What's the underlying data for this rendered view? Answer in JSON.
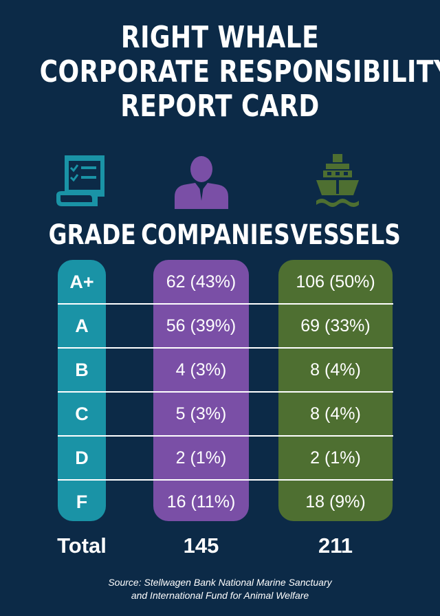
{
  "title": {
    "line1": "RIGHT WHALE",
    "line2": "CORPORATE RESPONSIBILITY",
    "line3": "REPORT CARD"
  },
  "icons": {
    "grade": "report-card-icon",
    "companies": "person-icon",
    "vessels": "ship-icon"
  },
  "headers": {
    "grade": "GRADE",
    "companies": "COMPANIES",
    "vessels": "VESSELS"
  },
  "colors": {
    "background": "#0c2a47",
    "grade": "#1a93a6",
    "companies": "#7a4fa6",
    "vessels": "#4e6f31"
  },
  "rows": [
    {
      "grade": "A+",
      "companies": "62 (43%)",
      "vessels": "106 (50%)"
    },
    {
      "grade": "A",
      "companies": "56 (39%)",
      "vessels": "69 (33%)"
    },
    {
      "grade": "B",
      "companies": "4 (3%)",
      "vessels": "8 (4%)"
    },
    {
      "grade": "C",
      "companies": "5 (3%)",
      "vessels": "8 (4%)"
    },
    {
      "grade": "D",
      "companies": "2 (1%)",
      "vessels": "2 (1%)"
    },
    {
      "grade": "F",
      "companies": "16 (11%)",
      "vessels": "18 (9%)"
    }
  ],
  "totals": {
    "label": "Total",
    "companies": "145",
    "vessels": "211"
  },
  "source": {
    "line1": "Source: Stellwagen Bank National Marine Sanctuary",
    "line2": "and International Fund for Animal Welfare"
  }
}
